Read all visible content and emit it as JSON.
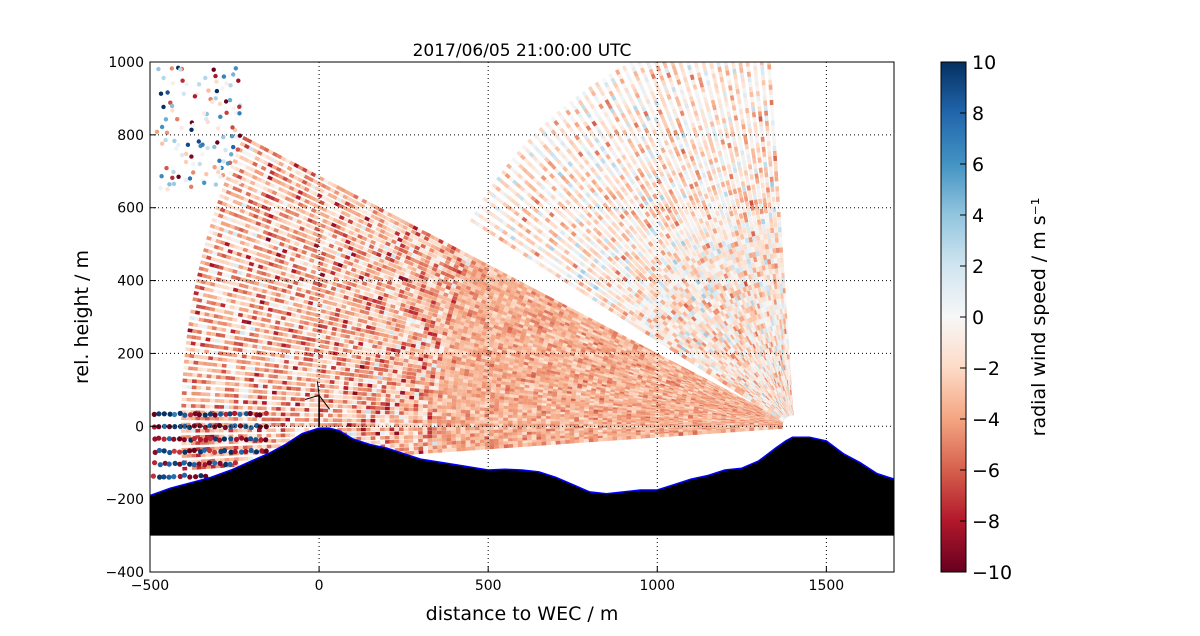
{
  "chart_data": {
    "type": "scatter",
    "title": "2017/06/05 21:00:00 UTC",
    "xlabel": "distance to WEC / m",
    "ylabel": "rel. height / m",
    "xlim": [
      -500,
      1700
    ],
    "ylim": [
      -400,
      1000
    ],
    "x_ticks": [
      -500,
      0,
      500,
      1000,
      1500
    ],
    "y_ticks": [
      -400,
      -200,
      0,
      200,
      400,
      600,
      800,
      1000
    ],
    "x_tick_labels": [
      "−500",
      "0",
      "500",
      "1000",
      "1500"
    ],
    "y_tick_labels": [
      "−400",
      "−200",
      "0",
      "200",
      "400",
      "600",
      "800",
      "1000"
    ],
    "grid": true,
    "colormap": "RdBu",
    "colorbar": {
      "label": "radial wind speed / m s⁻¹",
      "range": [
        -10,
        10
      ],
      "ticks": [
        10,
        8,
        6,
        4,
        2,
        0,
        -2,
        -4,
        -6,
        -8,
        -10
      ],
      "tick_labels": [
        "10",
        "8",
        "6",
        "4",
        "2",
        "0",
        "−2",
        "−4",
        "−6",
        "−8",
        "−10"
      ]
    },
    "lidar": {
      "position": [
        1400,
        0
      ],
      "typical_radial_speed": -3.5,
      "scan_range": 1800
    },
    "terrain_profile": {
      "x": [
        -500,
        -440,
        -380,
        -320,
        -260,
        -200,
        -150,
        -100,
        -50,
        0,
        30,
        60,
        100,
        150,
        200,
        250,
        300,
        400,
        500,
        550,
        600,
        650,
        700,
        750,
        800,
        850,
        900,
        950,
        1000,
        1050,
        1100,
        1150,
        1200,
        1250,
        1300,
        1350,
        1380,
        1400,
        1450,
        1500,
        1550,
        1600,
        1650,
        1700
      ],
      "y": [
        -190,
        -170,
        -155,
        -140,
        -120,
        -95,
        -75,
        -50,
        -20,
        -5,
        -5,
        -12,
        -35,
        -50,
        -60,
        -75,
        -90,
        -105,
        -120,
        -118,
        -120,
        -125,
        -140,
        -160,
        -180,
        -185,
        -180,
        -175,
        -175,
        -160,
        -145,
        -135,
        -120,
        -115,
        -95,
        -60,
        -40,
        -30,
        -30,
        -40,
        -75,
        -100,
        -130,
        -145
      ],
      "base": -300,
      "fill": "#000000",
      "edge": "#0000ff"
    },
    "turbine": {
      "x": 0,
      "hub_height": 85
    }
  }
}
